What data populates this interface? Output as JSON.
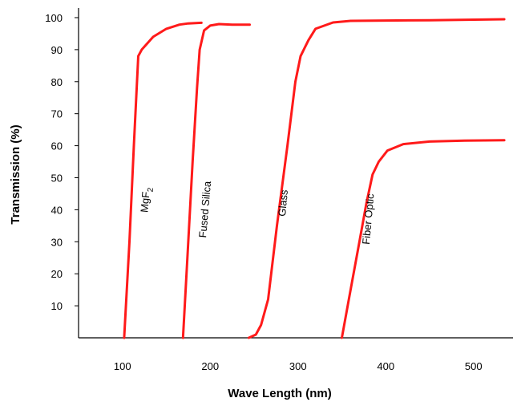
{
  "chart_data": {
    "type": "line",
    "xlabel": "Wave Length (nm)",
    "ylabel": "Transmission (%)",
    "xlim": [
      50,
      545
    ],
    "ylim": [
      0,
      103
    ],
    "x_ticks": [
      100,
      200,
      300,
      400,
      500
    ],
    "y_ticks": [
      10,
      20,
      30,
      40,
      50,
      60,
      70,
      80,
      90,
      100
    ],
    "grid": false,
    "legend": "none",
    "line_color": "#ff1a1a",
    "series": [
      {
        "label": "MgF",
        "label_sub": "2",
        "label_at": [
          130,
          43
        ],
        "points": [
          [
            102,
            0
          ],
          [
            108,
            30
          ],
          [
            113,
            60
          ],
          [
            118,
            88
          ],
          [
            122,
            90
          ],
          [
            135,
            94
          ],
          [
            150,
            96.5
          ],
          [
            165,
            97.8
          ],
          [
            175,
            98.2
          ],
          [
            190,
            98.4
          ]
        ]
      },
      {
        "label": "Fused Silica",
        "label_at": [
          198,
          40
        ],
        "points": [
          [
            169,
            0
          ],
          [
            174,
            25
          ],
          [
            180,
            55
          ],
          [
            185,
            78
          ],
          [
            188,
            90
          ],
          [
            193,
            96
          ],
          [
            200,
            97.5
          ],
          [
            210,
            98
          ],
          [
            225,
            97.8
          ],
          [
            245,
            97.8
          ]
        ]
      },
      {
        "label": "Glass",
        "label_at": [
          287,
          42
        ],
        "points": [
          [
            244,
            0
          ],
          [
            252,
            1
          ],
          [
            258,
            4
          ],
          [
            266,
            12
          ],
          [
            276,
            35
          ],
          [
            288,
            60
          ],
          [
            297,
            80
          ],
          [
            303,
            88
          ],
          [
            312,
            93
          ],
          [
            320,
            96.5
          ],
          [
            340,
            98.5
          ],
          [
            360,
            99
          ],
          [
            450,
            99.2
          ],
          [
            535,
            99.5
          ]
        ]
      },
      {
        "label": "Fiber Optic",
        "label_at": [
          384,
          37
        ],
        "points": [
          [
            350,
            0
          ],
          [
            360,
            15
          ],
          [
            370,
            30
          ],
          [
            378,
            42
          ],
          [
            385,
            51
          ],
          [
            392,
            55
          ],
          [
            402,
            58.5
          ],
          [
            420,
            60.5
          ],
          [
            450,
            61.3
          ],
          [
            490,
            61.6
          ],
          [
            535,
            61.7
          ]
        ]
      }
    ]
  }
}
